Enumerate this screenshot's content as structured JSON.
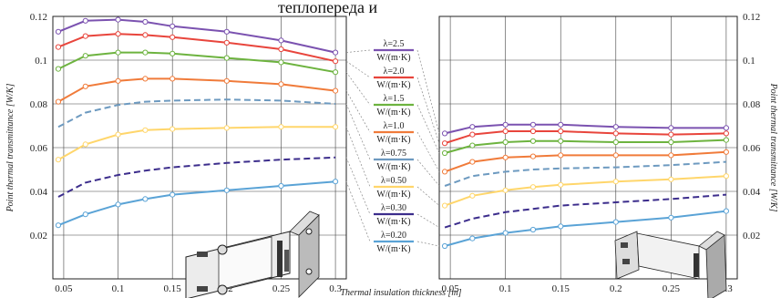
{
  "header_fragment": "теплопереда и",
  "chart_data": [
    {
      "type": "line",
      "panel": "left",
      "x": [
        0.045,
        0.07,
        0.1,
        0.125,
        0.15,
        0.2,
        0.25,
        0.3
      ],
      "xlim": [
        0.04,
        0.31
      ],
      "ylim": [
        0.0,
        0.12
      ],
      "xticks": [
        "0.05",
        "0.1",
        "0.15",
        "0.2",
        "0.25",
        "0.3"
      ],
      "yticks": [
        "0.02",
        "0.04",
        "0.06",
        "0.08",
        "0.1",
        "0.12"
      ],
      "ylabel": "Point thermal transmittance [W/K]",
      "grid": true,
      "series": [
        {
          "name": "λ=2.5 W/(m·K)",
          "color": "#7b52b0",
          "style": "solid",
          "markers": true,
          "values": [
            0.113,
            0.118,
            0.1185,
            0.1175,
            0.1155,
            0.113,
            0.109,
            0.1035
          ]
        },
        {
          "name": "λ=2.0 W/(m·K)",
          "color": "#e8453c",
          "style": "solid",
          "markers": true,
          "values": [
            0.106,
            0.111,
            0.112,
            0.1115,
            0.1105,
            0.108,
            0.105,
            0.0995
          ]
        },
        {
          "name": "λ=1.5 W/(m·K)",
          "color": "#6db33f",
          "style": "solid",
          "markers": true,
          "values": [
            0.096,
            0.102,
            0.1035,
            0.1035,
            0.103,
            0.101,
            0.099,
            0.0945
          ]
        },
        {
          "name": "λ=1.0 W/(m·K)",
          "color": "#f07b3a",
          "style": "solid",
          "markers": true,
          "values": [
            0.081,
            0.088,
            0.0905,
            0.0915,
            0.0915,
            0.0905,
            0.089,
            0.086
          ]
        },
        {
          "name": "λ=0.75 W/(m·K)",
          "color": "#6d9ac0",
          "style": "dashed",
          "markers": false,
          "values": [
            0.0695,
            0.076,
            0.0795,
            0.081,
            0.0815,
            0.082,
            0.0815,
            0.08
          ]
        },
        {
          "name": "λ=0.50 W/(m·K)",
          "color": "#ffd66b",
          "style": "solid",
          "markers": true,
          "values": [
            0.0545,
            0.0615,
            0.066,
            0.068,
            0.0685,
            0.069,
            0.0695,
            0.0695
          ]
        },
        {
          "name": "λ=0.30 W/(m·K)",
          "color": "#3c2d8c",
          "style": "dashed",
          "markers": false,
          "values": [
            0.0375,
            0.044,
            0.0475,
            0.0495,
            0.051,
            0.053,
            0.0545,
            0.0555
          ]
        },
        {
          "name": "λ=0.20 W/(m·K)",
          "color": "#5aa3d6",
          "style": "solid",
          "markers": true,
          "values": [
            0.0245,
            0.0295,
            0.034,
            0.0365,
            0.0385,
            0.0405,
            0.0425,
            0.0445
          ]
        }
      ]
    },
    {
      "type": "line",
      "panel": "right",
      "x": [
        0.045,
        0.07,
        0.1,
        0.125,
        0.15,
        0.2,
        0.25,
        0.3
      ],
      "xlim": [
        0.04,
        0.31
      ],
      "ylim": [
        0.0,
        0.12
      ],
      "xticks": [
        "0.05",
        "0.1",
        "0.15",
        "0.2",
        "0.25",
        "0.3"
      ],
      "yticks": [
        "0.02",
        "0.04",
        "0.06",
        "0.08",
        "0.1",
        "0.12"
      ],
      "ylabel": "Point thermal transmittance [W/K]",
      "xlabel": "Thermal insulation thickness [m]",
      "grid": true,
      "series": [
        {
          "name": "λ=2.5 W/(m·K)",
          "color": "#7b52b0",
          "style": "solid",
          "markers": true,
          "values": [
            0.0665,
            0.0695,
            0.0705,
            0.0705,
            0.0705,
            0.0695,
            0.069,
            0.069
          ]
        },
        {
          "name": "λ=2.0 W/(m·K)",
          "color": "#e8453c",
          "style": "solid",
          "markers": true,
          "values": [
            0.062,
            0.066,
            0.0675,
            0.0675,
            0.0675,
            0.0665,
            0.066,
            0.0665
          ]
        },
        {
          "name": "λ=1.5 W/(m·K)",
          "color": "#6db33f",
          "style": "solid",
          "markers": true,
          "values": [
            0.0575,
            0.061,
            0.0625,
            0.063,
            0.063,
            0.0625,
            0.0625,
            0.0635
          ]
        },
        {
          "name": "λ=1.0 W/(m·K)",
          "color": "#f07b3a",
          "style": "solid",
          "markers": true,
          "values": [
            0.049,
            0.0535,
            0.0555,
            0.056,
            0.0565,
            0.0565,
            0.0565,
            0.058
          ]
        },
        {
          "name": "λ=0.75 W/(m·K)",
          "color": "#6d9ac0",
          "style": "dashed",
          "markers": false,
          "values": [
            0.0425,
            0.047,
            0.049,
            0.05,
            0.0505,
            0.051,
            0.052,
            0.0535
          ]
        },
        {
          "name": "λ=0.50 W/(m·K)",
          "color": "#ffd66b",
          "style": "solid",
          "markers": true,
          "values": [
            0.0335,
            0.038,
            0.0405,
            0.042,
            0.043,
            0.0445,
            0.0455,
            0.047
          ]
        },
        {
          "name": "λ=0.30 W/(m·K)",
          "color": "#3c2d8c",
          "style": "dashed",
          "markers": false,
          "values": [
            0.0235,
            0.0275,
            0.0305,
            0.032,
            0.0335,
            0.035,
            0.0365,
            0.0385
          ]
        },
        {
          "name": "λ=0.20 W/(m·K)",
          "color": "#5aa3d6",
          "style": "solid",
          "markers": true,
          "values": [
            0.015,
            0.0185,
            0.021,
            0.0225,
            0.024,
            0.026,
            0.028,
            0.031
          ]
        }
      ]
    }
  ],
  "legend": [
    {
      "top": "λ=2.5",
      "bottom": "W/(m·K)",
      "color": "#7b52b0"
    },
    {
      "top": "λ=2.0",
      "bottom": "W/(m·K)",
      "color": "#e8453c"
    },
    {
      "top": "λ=1.5",
      "bottom": "W/(m·K)",
      "color": "#6db33f"
    },
    {
      "top": "λ=1.0",
      "bottom": "W/(m·K)",
      "color": "#f07b3a"
    },
    {
      "top": "λ=0.75",
      "bottom": "W/(m·K)",
      "color": "#6d9ac0"
    },
    {
      "top": "λ=0.50",
      "bottom": "W/(m·K)",
      "color": "#ffd66b"
    },
    {
      "top": "λ=0.30",
      "bottom": "W/(m·K)",
      "color": "#3c2d8c"
    },
    {
      "top": "λ=0.20",
      "bottom": "W/(m·K)",
      "color": "#5aa3d6"
    }
  ]
}
